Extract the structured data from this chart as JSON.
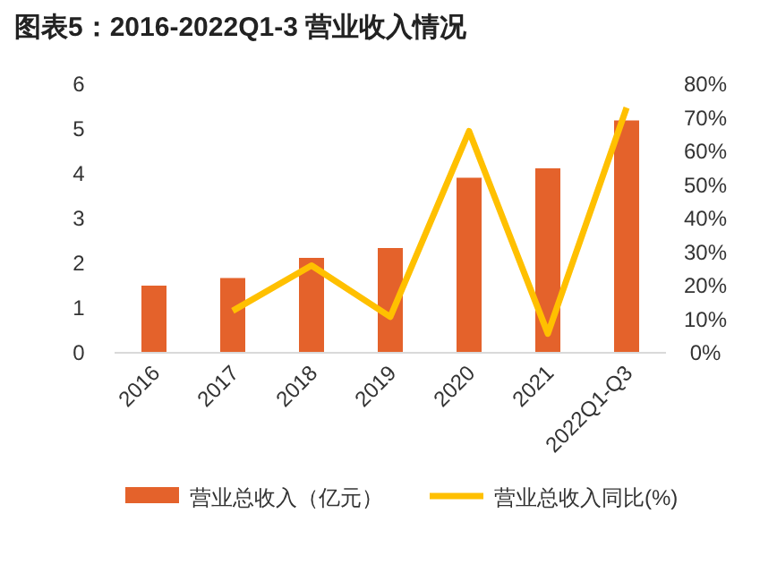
{
  "chart_data": {
    "type": "bar",
    "title": "图表5：2016-2022Q1-3 营业收入情况",
    "categories": [
      "2016",
      "2017",
      "2018",
      "2019",
      "2020",
      "2021",
      "2022Q1-Q3"
    ],
    "series": [
      {
        "name": "营业总收入（亿元）",
        "color": "#e4622b",
        "values": [
          1.5,
          1.67,
          2.12,
          2.34,
          3.91,
          4.12,
          5.19
        ]
      },
      {
        "name": "营业总收入同比(%)",
        "type": "line",
        "axis": "y2",
        "color": "#ffc000",
        "values": [
          null,
          12.5,
          26,
          10.7,
          66,
          5.7,
          73
        ]
      }
    ],
    "ylim": [
      0,
      6
    ],
    "yticks": [
      0,
      1,
      2,
      3,
      4,
      5,
      6
    ],
    "y2lim": [
      0,
      80
    ],
    "y2ticks": [
      {
        "value": 0,
        "label": "0%"
      },
      {
        "value": 10,
        "label": "10%"
      },
      {
        "value": 20,
        "label": "20%"
      },
      {
        "value": 30,
        "label": "30%"
      },
      {
        "value": 40,
        "label": "40%"
      },
      {
        "value": 50,
        "label": "50%"
      },
      {
        "value": 60,
        "label": "60%"
      },
      {
        "value": 70,
        "label": "70%"
      },
      {
        "value": 80,
        "label": "80%"
      }
    ],
    "legend": "bottom",
    "grid": false
  }
}
